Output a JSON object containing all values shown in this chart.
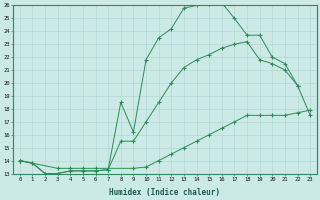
{
  "xlabel": "Humidex (Indice chaleur)",
  "line_color": "#2E8B57",
  "bg_color": "#CBE9E5",
  "grid_color": "#B0D5D0",
  "xlim": [
    -0.5,
    23.5
  ],
  "ylim": [
    13,
    26
  ],
  "xticks": [
    0,
    1,
    2,
    3,
    4,
    5,
    6,
    7,
    8,
    9,
    10,
    11,
    12,
    13,
    14,
    15,
    16,
    17,
    18,
    19,
    20,
    21,
    22,
    23
  ],
  "yticks": [
    13,
    14,
    15,
    16,
    17,
    18,
    19,
    20,
    21,
    22,
    23,
    24,
    25,
    26
  ],
  "x_max": [
    0,
    1,
    2,
    3,
    4,
    5,
    6,
    7,
    8,
    9,
    10,
    11,
    12,
    13,
    14,
    15,
    16,
    17,
    18,
    19,
    20,
    21,
    22
  ],
  "y_max": [
    14,
    13.8,
    13.0,
    13.0,
    13.2,
    13.2,
    13.2,
    13.3,
    18.5,
    16.2,
    21.8,
    23.5,
    24.2,
    25.8,
    26.0,
    26.1,
    26.2,
    25.0,
    23.7,
    23.7,
    22.0,
    21.5,
    19.8
  ],
  "x_mid": [
    0,
    1,
    2,
    3,
    4,
    5,
    6,
    7,
    8,
    9,
    10,
    11,
    12,
    13,
    14,
    15,
    16,
    17,
    18,
    19,
    20,
    21,
    22,
    23
  ],
  "y_mid": [
    14,
    13.8,
    13.0,
    13.0,
    13.2,
    13.2,
    13.2,
    13.3,
    15.5,
    15.5,
    17.0,
    18.5,
    20.0,
    21.2,
    21.8,
    22.2,
    22.7,
    23.0,
    23.2,
    21.8,
    21.5,
    21.0,
    19.8,
    17.5
  ],
  "x_min": [
    0,
    3,
    4,
    5,
    6,
    9,
    10,
    11,
    12,
    13,
    14,
    15,
    16,
    17,
    18,
    19,
    20,
    21,
    22,
    23
  ],
  "y_min": [
    14,
    13.4,
    13.4,
    13.4,
    13.4,
    13.4,
    13.5,
    14.0,
    14.5,
    15.0,
    15.5,
    16.0,
    16.5,
    17.0,
    17.5,
    17.5,
    17.5,
    17.5,
    17.7,
    17.9
  ]
}
